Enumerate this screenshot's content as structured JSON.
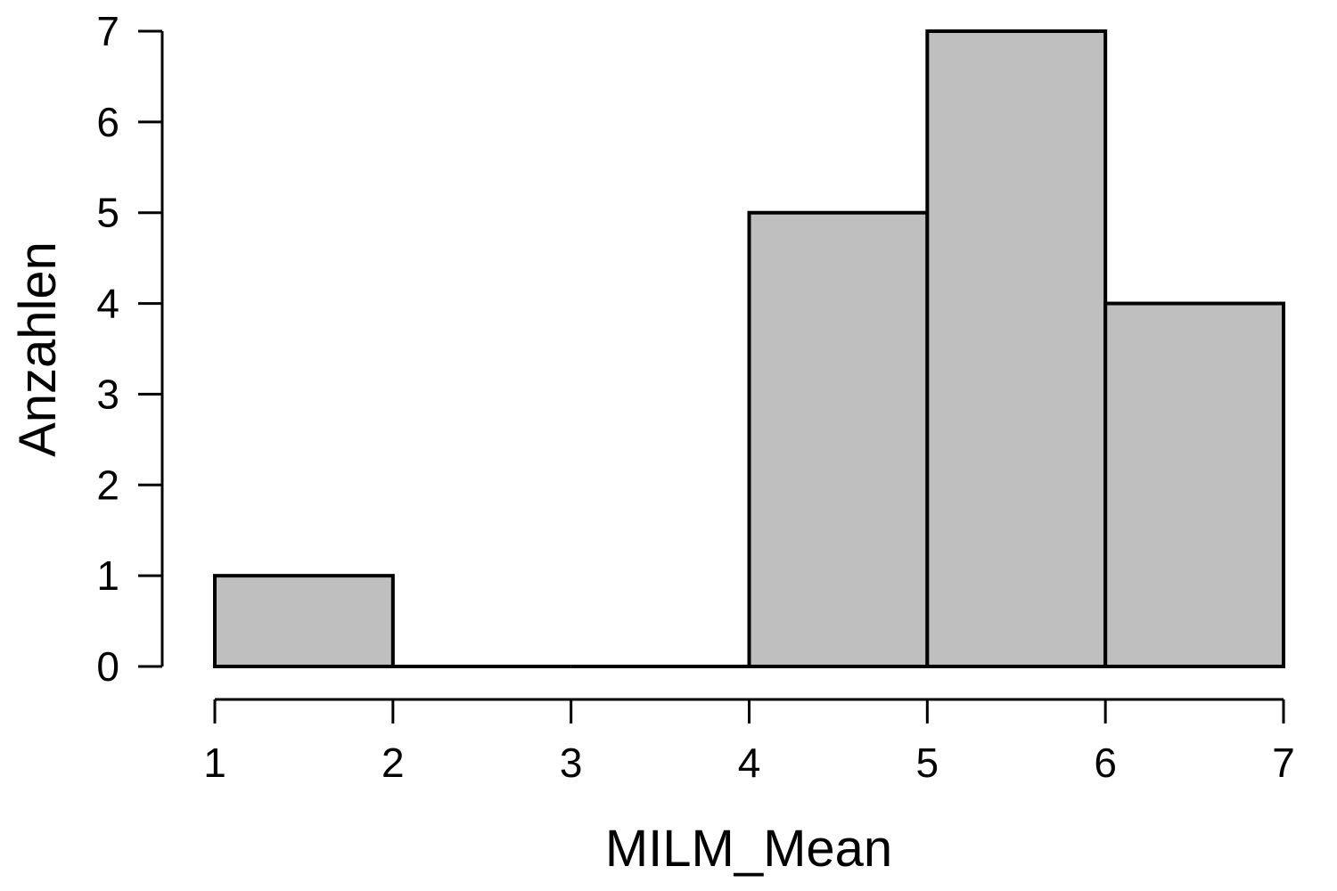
{
  "chart_data": {
    "type": "histogram",
    "bins": [
      {
        "from": 1,
        "to": 2,
        "count": 1
      },
      {
        "from": 2,
        "to": 3,
        "count": 0
      },
      {
        "from": 3,
        "to": 4,
        "count": 0
      },
      {
        "from": 4,
        "to": 5,
        "count": 5
      },
      {
        "from": 5,
        "to": 6,
        "count": 7
      },
      {
        "from": 6,
        "to": 7,
        "count": 4
      }
    ],
    "xlabel": "MILM_Mean",
    "ylabel": "Anzahlen",
    "xlim": [
      1,
      7
    ],
    "ylim": [
      0,
      7
    ],
    "xticks": [
      "1",
      "2",
      "3",
      "4",
      "5",
      "6",
      "7"
    ],
    "yticks": [
      "0",
      "1",
      "2",
      "3",
      "4",
      "5",
      "6",
      "7"
    ],
    "grid": false,
    "bar_color": "#bfbfbf",
    "edge_color": "#000000"
  }
}
